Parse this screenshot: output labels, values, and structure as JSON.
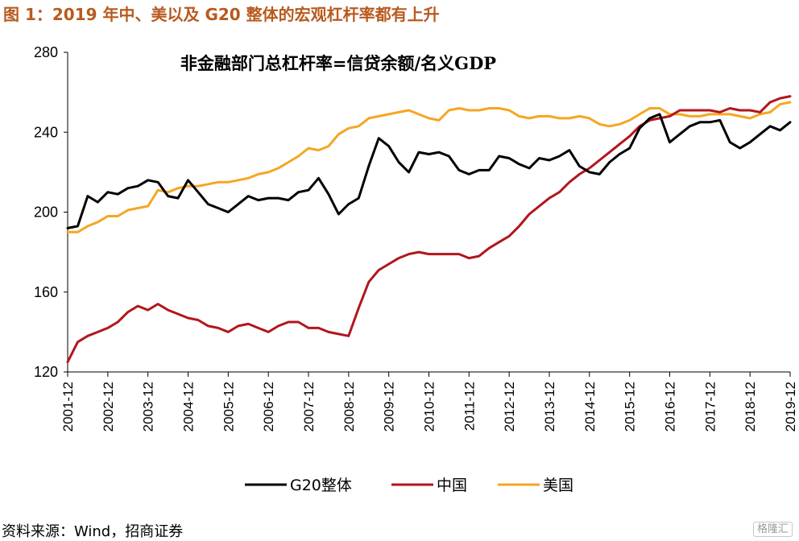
{
  "figure": {
    "title": "图 1：2019 年中、美以及 G20 整体的宏观杠杆率都有上升",
    "source": "资料来源：Wind，招商证券",
    "watermark": "格隆汇"
  },
  "chart_data": {
    "type": "line",
    "title": "非金融部门总杠杆率=信贷余额/名义GDP",
    "xlabel": "",
    "ylabel": "",
    "ylim": [
      120,
      280
    ],
    "yticks": [
      120,
      160,
      200,
      240,
      280
    ],
    "xticks": [
      "2001-12",
      "2002-12",
      "2003-12",
      "2004-12",
      "2005-12",
      "2006-12",
      "2007-12",
      "2008-12",
      "2009-12",
      "2010-12",
      "2011-12",
      "2012-12",
      "2013-12",
      "2014-12",
      "2015-12",
      "2016-12",
      "2017-12",
      "2018-12",
      "2019-12"
    ],
    "x_frequency": "quarterly",
    "x_start": "2001-12",
    "x": [
      "2001-12",
      "2002-03",
      "2002-06",
      "2002-09",
      "2002-12",
      "2003-03",
      "2003-06",
      "2003-09",
      "2003-12",
      "2004-03",
      "2004-06",
      "2004-09",
      "2004-12",
      "2005-03",
      "2005-06",
      "2005-09",
      "2005-12",
      "2006-03",
      "2006-06",
      "2006-09",
      "2006-12",
      "2007-03",
      "2007-06",
      "2007-09",
      "2007-12",
      "2008-03",
      "2008-06",
      "2008-09",
      "2008-12",
      "2009-03",
      "2009-06",
      "2009-09",
      "2009-12",
      "2010-03",
      "2010-06",
      "2010-09",
      "2010-12",
      "2011-03",
      "2011-06",
      "2011-09",
      "2011-12",
      "2012-03",
      "2012-06",
      "2012-09",
      "2012-12",
      "2013-03",
      "2013-06",
      "2013-09",
      "2013-12",
      "2014-03",
      "2014-06",
      "2014-09",
      "2014-12",
      "2015-03",
      "2015-06",
      "2015-09",
      "2015-12",
      "2016-03",
      "2016-06",
      "2016-09",
      "2016-12",
      "2017-03",
      "2017-06",
      "2017-09",
      "2017-12",
      "2018-03",
      "2018-06",
      "2018-09",
      "2018-12",
      "2019-03",
      "2019-06",
      "2019-09",
      "2019-12"
    ],
    "grid": false,
    "legend_position": "bottom",
    "series": [
      {
        "name": "G20整体",
        "color": "#000000",
        "values": [
          192,
          193,
          208,
          205,
          210,
          209,
          212,
          213,
          216,
          215,
          208,
          207,
          216,
          210,
          204,
          202,
          200,
          204,
          208,
          206,
          207,
          207,
          206,
          210,
          211,
          217,
          209,
          199,
          204,
          207,
          223,
          237,
          233,
          225,
          220,
          230,
          229,
          230,
          228,
          221,
          219,
          221,
          221,
          228,
          227,
          224,
          222,
          227,
          226,
          228,
          231,
          223,
          220,
          219,
          225,
          229,
          232,
          242,
          247,
          249,
          235,
          239,
          243,
          245,
          245,
          246,
          235,
          232,
          235,
          239,
          243,
          241,
          245
        ]
      },
      {
        "name": "中国",
        "color": "#b2161c",
        "values": [
          125,
          135,
          138,
          140,
          142,
          145,
          150,
          153,
          151,
          154,
          151,
          149,
          147,
          146,
          143,
          142,
          140,
          143,
          144,
          142,
          140,
          143,
          145,
          145,
          142,
          142,
          140,
          139,
          138,
          152,
          165,
          171,
          174,
          177,
          179,
          180,
          179,
          179,
          179,
          179,
          177,
          178,
          182,
          185,
          188,
          193,
          199,
          203,
          207,
          210,
          215,
          219,
          222,
          226,
          230,
          234,
          238,
          243,
          246,
          247,
          248,
          251,
          251,
          251,
          251,
          250,
          252,
          251,
          251,
          250,
          255,
          257,
          258
        ]
      },
      {
        "name": "美国",
        "color": "#f5a623",
        "values": [
          190,
          190,
          193,
          195,
          198,
          198,
          201,
          202,
          203,
          211,
          210,
          212,
          213,
          213,
          214,
          215,
          215,
          216,
          217,
          219,
          220,
          222,
          225,
          228,
          232,
          231,
          233,
          239,
          242,
          243,
          247,
          248,
          249,
          250,
          251,
          249,
          247,
          246,
          251,
          252,
          251,
          251,
          252,
          252,
          251,
          248,
          247,
          248,
          248,
          247,
          247,
          248,
          247,
          244,
          243,
          244,
          246,
          249,
          252,
          252,
          249,
          249,
          248,
          248,
          249,
          249,
          249,
          248,
          247,
          249,
          250,
          254,
          255
        ]
      }
    ]
  }
}
